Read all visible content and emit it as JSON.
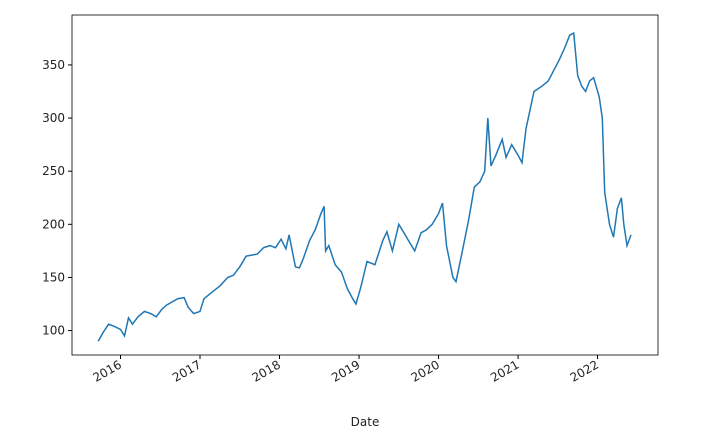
{
  "chart_data": {
    "type": "line",
    "xlabel": "Date",
    "x": [
      2015.72,
      2015.78,
      2015.85,
      2015.92,
      2016.0,
      2016.05,
      2016.1,
      2016.15,
      2016.22,
      2016.3,
      2016.38,
      2016.45,
      2016.52,
      2016.58,
      2016.65,
      2016.72,
      2016.8,
      2016.85,
      2016.92,
      2017.0,
      2017.05,
      2017.15,
      2017.25,
      2017.35,
      2017.42,
      2017.5,
      2017.58,
      2017.65,
      2017.72,
      2017.8,
      2017.88,
      2017.95,
      2018.02,
      2018.08,
      2018.12,
      2018.2,
      2018.25,
      2018.3,
      2018.38,
      2018.45,
      2018.52,
      2018.56,
      2018.58,
      2018.62,
      2018.7,
      2018.78,
      2018.85,
      2018.92,
      2018.96,
      2019.02,
      2019.1,
      2019.2,
      2019.3,
      2019.35,
      2019.42,
      2019.5,
      2019.58,
      2019.62,
      2019.7,
      2019.78,
      2019.85,
      2019.92,
      2020.0,
      2020.05,
      2020.1,
      2020.18,
      2020.22,
      2020.3,
      2020.38,
      2020.45,
      2020.52,
      2020.58,
      2020.62,
      2020.66,
      2020.72,
      2020.8,
      2020.85,
      2020.92,
      2021.0,
      2021.05,
      2021.1,
      2021.2,
      2021.3,
      2021.38,
      2021.45,
      2021.52,
      2021.58,
      2021.65,
      2021.7,
      2021.75,
      2021.8,
      2021.85,
      2021.9,
      2021.95,
      2022.02,
      2022.06,
      2022.09,
      2022.15,
      2022.2,
      2022.25,
      2022.3,
      2022.33,
      2022.37,
      2022.42
    ],
    "series": [
      {
        "color": "#1f77b4",
        "values": [
          90,
          98,
          106,
          104,
          101,
          95,
          112,
          106,
          113,
          118,
          116,
          113,
          120,
          124,
          127,
          130,
          131,
          122,
          116,
          118,
          130,
          136,
          142,
          150,
          152,
          160,
          170,
          171,
          172,
          178,
          180,
          178,
          186,
          177,
          190,
          160,
          159,
          168,
          185,
          195,
          210,
          217,
          175,
          180,
          162,
          155,
          140,
          130,
          125,
          140,
          165,
          162,
          185,
          193,
          175,
          200,
          190,
          185,
          175,
          192,
          195,
          200,
          210,
          220,
          180,
          150,
          146,
          175,
          205,
          235,
          240,
          250,
          300,
          255,
          265,
          280,
          263,
          275,
          265,
          258,
          290,
          325,
          330,
          335,
          345,
          355,
          365,
          378,
          380,
          340,
          330,
          325,
          335,
          338,
          320,
          300,
          230,
          200,
          188,
          215,
          225,
          200,
          180,
          190
        ]
      }
    ],
    "xlim": [
      2015.39,
      2022.76
    ],
    "xticks": [
      2016,
      2017,
      2018,
      2019,
      2020,
      2021,
      2022
    ],
    "ylim": [
      77,
      397
    ],
    "yticks": [
      100,
      150,
      200,
      250,
      300,
      350
    ],
    "grid": false
  }
}
